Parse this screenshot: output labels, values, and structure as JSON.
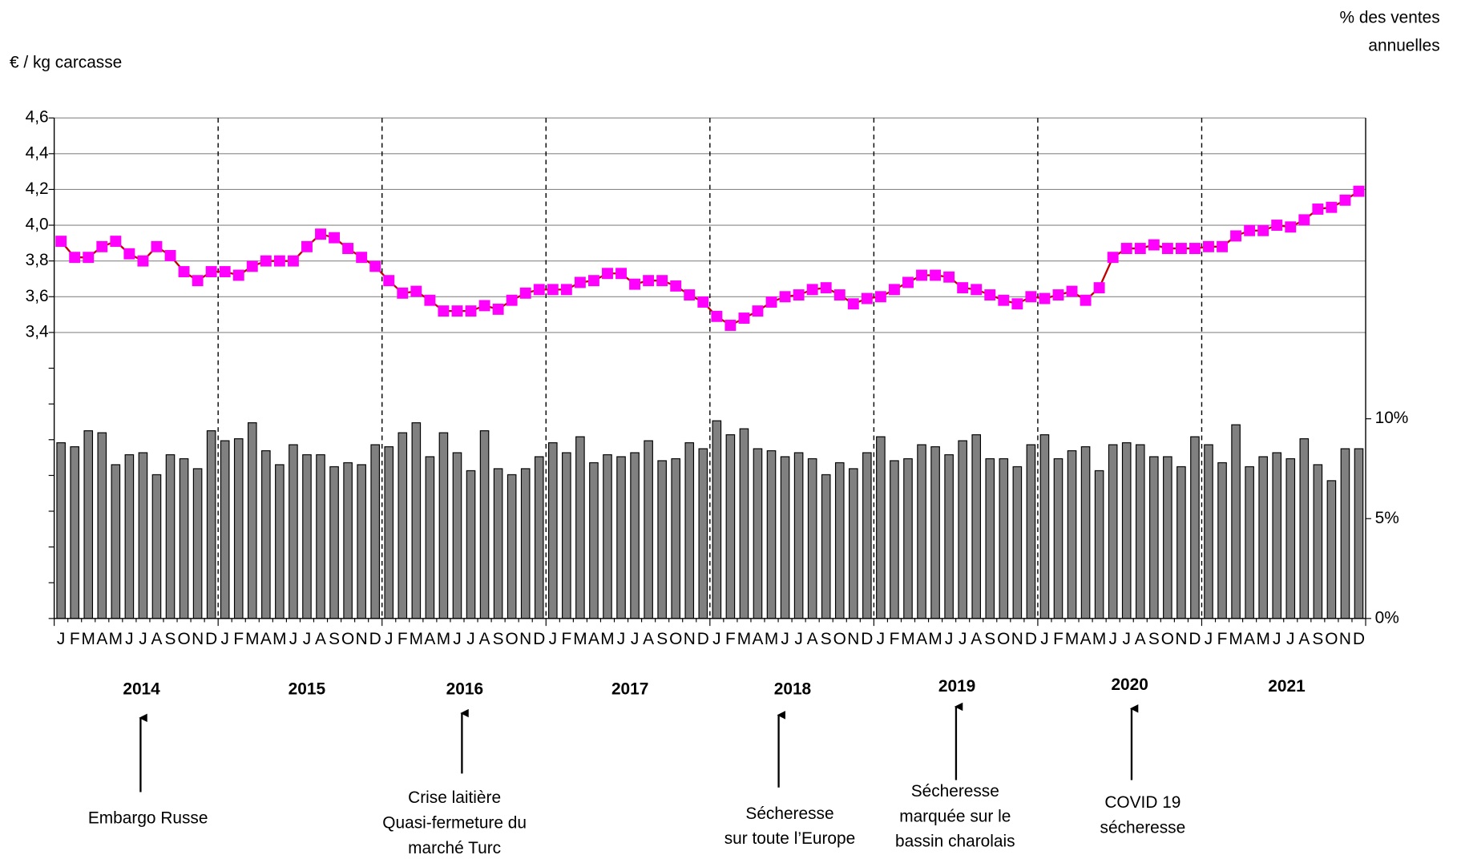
{
  "chart_data": {
    "type": "combo",
    "y_label": "€ / kg carcasse",
    "y2_label": [
      "% des ventes",
      "annuelles"
    ],
    "categories": [
      "J",
      "F",
      "M",
      "A",
      "M",
      "J",
      "J",
      "A",
      "S",
      "O",
      "N",
      "D",
      "J",
      "F",
      "M",
      "A",
      "M",
      "J",
      "J",
      "A",
      "S",
      "O",
      "N",
      "D",
      "J",
      "F",
      "M",
      "A",
      "M",
      "J",
      "J",
      "A",
      "S",
      "O",
      "N",
      "D",
      "J",
      "F",
      "M",
      "A",
      "M",
      "J",
      "J",
      "A",
      "S",
      "O",
      "N",
      "D",
      "J",
      "F",
      "M",
      "A",
      "M",
      "J",
      "J",
      "A",
      "S",
      "O",
      "N",
      "D",
      "J",
      "F",
      "M",
      "A",
      "M",
      "J",
      "J",
      "A",
      "S",
      "O",
      "N",
      "D",
      "J",
      "F",
      "M",
      "A",
      "M",
      "J",
      "J",
      "A",
      "S",
      "O",
      "N",
      "D",
      "J",
      "F",
      "M",
      "A",
      "M",
      "J",
      "J",
      "A",
      "S",
      "O",
      "N",
      "D"
    ],
    "years": [
      "2014",
      "2015",
      "2016",
      "2017",
      "2018",
      "2019",
      "2020",
      "2021"
    ],
    "ylim": [
      1.8,
      4.6
    ],
    "yticks": [
      {
        "value": 3.4,
        "label": "3,4"
      },
      {
        "value": 3.6,
        "label": "3,6"
      },
      {
        "value": 3.8,
        "label": "3,8"
      },
      {
        "value": 4.0,
        "label": "4,0"
      },
      {
        "value": 4.2,
        "label": "4,2"
      },
      {
        "value": 4.4,
        "label": "4,4"
      },
      {
        "value": 4.6,
        "label": "4,6"
      }
    ],
    "yminorticks": [
      1.8,
      2.0,
      2.2,
      2.4,
      2.6,
      2.8,
      3.0,
      3.2
    ],
    "y2lim": [
      0,
      13.3
    ],
    "y2ticks": [
      {
        "value": 0,
        "label": "0%"
      },
      {
        "value": 5,
        "label": "5%"
      },
      {
        "value": 10,
        "label": "10%"
      }
    ],
    "grid": true,
    "series": [
      {
        "type": "line",
        "color": "#ff00ff",
        "line_color": "#c00000",
        "values": [
          3.91,
          3.82,
          3.82,
          3.88,
          3.91,
          3.84,
          3.8,
          3.88,
          3.83,
          3.74,
          3.69,
          3.74,
          3.74,
          3.72,
          3.77,
          3.8,
          3.8,
          3.8,
          3.88,
          3.95,
          3.93,
          3.87,
          3.82,
          3.77,
          3.69,
          3.62,
          3.63,
          3.58,
          3.52,
          3.52,
          3.52,
          3.55,
          3.53,
          3.58,
          3.62,
          3.64,
          3.64,
          3.64,
          3.68,
          3.69,
          3.73,
          3.73,
          3.67,
          3.69,
          3.69,
          3.66,
          3.61,
          3.57,
          3.49,
          3.44,
          3.48,
          3.52,
          3.57,
          3.6,
          3.61,
          3.64,
          3.65,
          3.61,
          3.56,
          3.59,
          3.6,
          3.64,
          3.68,
          3.72,
          3.72,
          3.71,
          3.65,
          3.64,
          3.61,
          3.58,
          3.56,
          3.6,
          3.59,
          3.61,
          3.63,
          3.58,
          3.65,
          3.82,
          3.87,
          3.87,
          3.89,
          3.87,
          3.87,
          3.87,
          3.88,
          3.88,
          3.94,
          3.97,
          3.97,
          4.0,
          3.99,
          4.03,
          4.09,
          4.1,
          4.14,
          4.19
        ]
      },
      {
        "type": "bar",
        "axis": "y2",
        "color": "#808080",
        "values": [
          8.8,
          8.6,
          9.4,
          9.3,
          7.7,
          8.2,
          8.3,
          7.2,
          8.2,
          8.0,
          7.5,
          9.4,
          8.9,
          9.0,
          9.8,
          8.4,
          7.7,
          8.7,
          8.2,
          8.2,
          7.6,
          7.8,
          7.7,
          8.7,
          8.6,
          9.3,
          9.8,
          8.1,
          9.3,
          8.3,
          7.4,
          9.4,
          7.5,
          7.2,
          7.5,
          8.1,
          8.8,
          8.3,
          9.1,
          7.8,
          8.2,
          8.1,
          8.3,
          8.9,
          7.9,
          8.0,
          8.8,
          8.5,
          9.9,
          9.2,
          9.5,
          8.5,
          8.4,
          8.1,
          8.3,
          8.0,
          7.2,
          7.8,
          7.5,
          8.3,
          9.1,
          7.9,
          8.0,
          8.7,
          8.6,
          8.2,
          8.9,
          9.2,
          8.0,
          8.0,
          7.6,
          8.7,
          9.2,
          8.0,
          8.4,
          8.6,
          7.4,
          8.7,
          8.8,
          8.7,
          8.1,
          8.1,
          7.6,
          9.1,
          8.7,
          7.8,
          9.7,
          7.6,
          8.1,
          8.3,
          8.0,
          9.0,
          7.7,
          6.9,
          8.5,
          8.5
        ]
      }
    ],
    "annotations": [
      {
        "lines": [
          "Embargo Russe"
        ]
      },
      {
        "lines": [
          "Crise laitière",
          "Quasi-fermeture du",
          "marché Turc"
        ]
      },
      {
        "lines": [
          "Sécheresse",
          "sur toute l’Europe"
        ]
      },
      {
        "lines": [
          "Sécheresse",
          "marquée sur le",
          "bassin charolais"
        ]
      },
      {
        "lines": [
          "COVID 19",
          "sécheresse"
        ]
      }
    ]
  }
}
